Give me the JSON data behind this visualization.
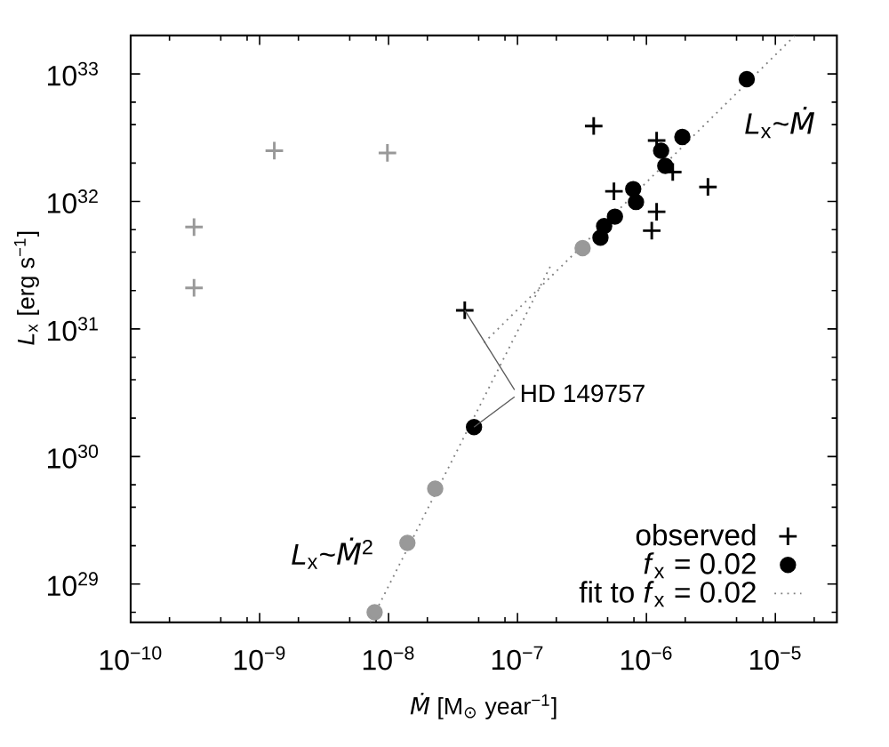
{
  "chart_data": {
    "type": "scatter",
    "xlabel": "*Ṁ* [M$_{⊙}$ year$^{−1}$]",
    "ylabel": "*L*$_{x}$ [erg s$^{−1}$]",
    "log": "xy",
    "xlim": [
      1e-10,
      3e-05
    ],
    "ylim": [
      5e+28,
      2e+33
    ],
    "xticks": [
      {
        "value": 1e-10,
        "label": "10$^{−10}$"
      },
      {
        "value": 2e-10,
        "label": null
      },
      {
        "value": 5e-10,
        "label": null
      },
      {
        "value": 8e-10,
        "label": null
      },
      {
        "value": 1e-09,
        "label": "10$^{−9}$"
      },
      {
        "value": 2e-09,
        "label": null
      },
      {
        "value": 5e-09,
        "label": null
      },
      {
        "value": 8e-09,
        "label": null
      },
      {
        "value": 1e-08,
        "label": "10$^{−8}$"
      },
      {
        "value": 2e-08,
        "label": null
      },
      {
        "value": 5e-08,
        "label": null
      },
      {
        "value": 8e-08,
        "label": null
      },
      {
        "value": 1e-07,
        "label": "10$^{−7}$"
      },
      {
        "value": 2e-07,
        "label": null
      },
      {
        "value": 5e-07,
        "label": null
      },
      {
        "value": 8e-07,
        "label": null
      },
      {
        "value": 1e-06,
        "label": "10$^{−6}$"
      },
      {
        "value": 2e-06,
        "label": null
      },
      {
        "value": 5e-06,
        "label": null
      },
      {
        "value": 8e-06,
        "label": null
      },
      {
        "value": 1e-05,
        "label": "10$^{−5}$"
      },
      {
        "value": 2e-05,
        "label": null
      }
    ],
    "yticks": [
      {
        "value": 6e+28,
        "label": null
      },
      {
        "value": 1e+29,
        "label": "10$^{29}$"
      },
      {
        "value": 2e+29,
        "label": null
      },
      {
        "value": 4e+29,
        "label": null
      },
      {
        "value": 6e+29,
        "label": null
      },
      {
        "value": 1e+30,
        "label": "10$^{30}$"
      },
      {
        "value": 2e+30,
        "label": null
      },
      {
        "value": 4e+30,
        "label": null
      },
      {
        "value": 6e+30,
        "label": null
      },
      {
        "value": 1e+31,
        "label": "10$^{31}$"
      },
      {
        "value": 2e+31,
        "label": null
      },
      {
        "value": 4e+31,
        "label": null
      },
      {
        "value": 6e+31,
        "label": null
      },
      {
        "value": 1e+32,
        "label": "10$^{32}$"
      },
      {
        "value": 2e+32,
        "label": null
      },
      {
        "value": 4e+32,
        "label": null
      },
      {
        "value": 6e+32,
        "label": null
      },
      {
        "value": 1e+33,
        "label": "10$^{33}$"
      }
    ],
    "legend": "bottom right",
    "series": [
      {
        "name": "observed",
        "color": "#000000",
        "marker": "cross",
        "x": [
          3.9e-08,
          3.9e-07,
          1.2e-06,
          5.6e-07,
          3e-06,
          1.2e-06,
          1.1e-06,
          1.6e-06
        ],
        "values": [
          1.4e+31,
          3.9e+32,
          3e+32,
          1.2e+32,
          1.3e+32,
          8.3e+31,
          5.9e+31,
          1.7e+32
        ]
      },
      {
        "color": "#999999",
        "marker": "cross",
        "x": [
          1.3e-09,
          9.8e-09,
          3.1e-10,
          3.1e-10
        ],
        "values": [
          2.5e+32,
          2.4e+32,
          6.3e+31,
          2.1e+31
        ]
      },
      {
        "name": "*f*$_{x}$ = 0.02",
        "color": "#000000",
        "marker": "circle",
        "x": [
          6e-06,
          1.9e-06,
          1.3e-06,
          1.4e-06,
          7.9e-07,
          8.3e-07,
          5.7e-07,
          4.7e-07,
          4.4e-07,
          4.6e-08
        ],
        "values": [
          9.1e+32,
          3.2e+32,
          2.5e+32,
          1.9e+32,
          1.25e+32,
          9.9e+31,
          7.6e+31,
          6.4e+31,
          5.2e+31,
          1.7e+30
        ]
      },
      {
        "color": "#999999",
        "marker": "circle",
        "x": [
          3.2e-07,
          2.3e-08,
          1.4e-08,
          7.8e-09
        ],
        "values": [
          4.3e+31,
          5.6e+29,
          2.1e+29,
          6e+28
        ]
      },
      {
        "name": "fit to *f*$_{x}$ = 0.02",
        "type": "line",
        "color": "#808080",
        "marker": "none",
        "line_style": "dotted",
        "x": [
          7.2e-09,
          1.8e-07
        ],
        "values": [
          5e+28,
          3.1e+31
        ]
      },
      {
        "type": "line",
        "color": "#808080",
        "marker": "none",
        "line_style": "dotted",
        "x": [
          5.5e-08,
          1.42e-05
        ],
        "values": [
          7.8e+30,
          2e+33
        ]
      }
    ],
    "annotations": [
      {
        "text": "HD 149757",
        "x": 3.9e-08,
        "y": 1.4e+31
      },
      "*L*$_{x}$~*Ṁ*",
      "*L*$_{x}$~*Ṁ*$^{2}$"
    ]
  }
}
